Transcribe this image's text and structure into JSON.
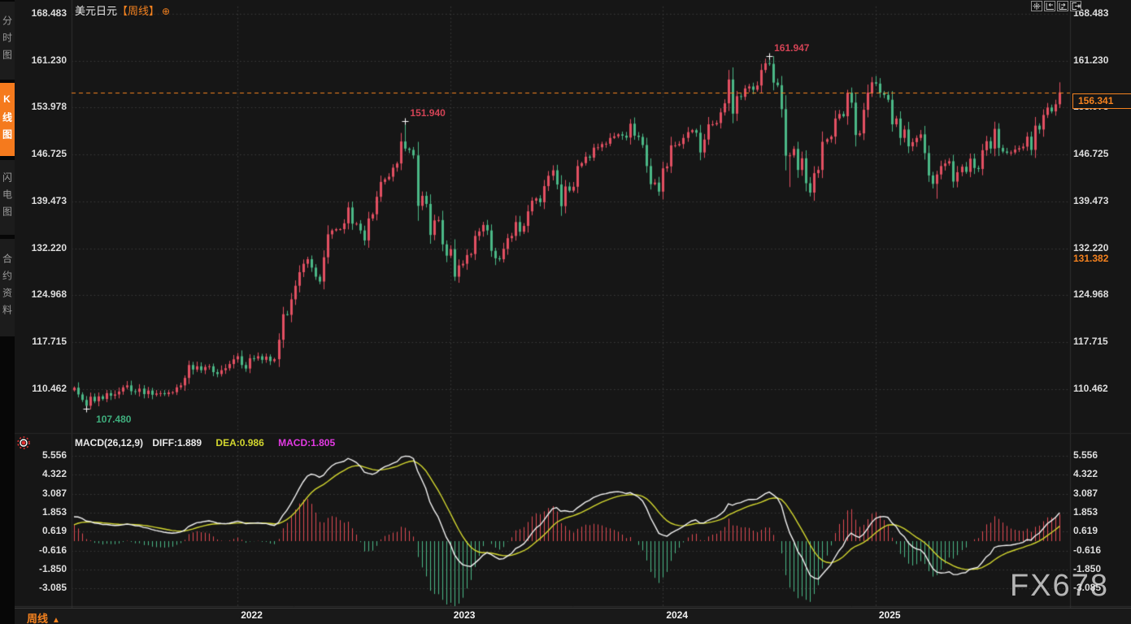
{
  "window": {
    "watermark": "FX678"
  },
  "sidebar": {
    "items": [
      {
        "label": "分时图",
        "active": false
      },
      {
        "label": "K线图",
        "active": true
      },
      {
        "label": "闪电图",
        "active": false
      },
      {
        "label": "合约资料",
        "active": false
      }
    ]
  },
  "header": {
    "symbol": "美元日元",
    "timeframe_bracket": "【周线】",
    "add_icon": "⊕"
  },
  "toolbar": {
    "buttons": [
      {
        "icon": "pan-crosshair-icon"
      },
      {
        "icon": "compress-scale-left-icon"
      },
      {
        "icon": "compress-scale-right-icon"
      },
      {
        "icon": "jump-to-latest-icon"
      }
    ]
  },
  "main_chart": {
    "y_axis_labels": [
      "168.483",
      "161.230",
      "153.978",
      "146.725",
      "139.473",
      "132.220",
      "124.968",
      "117.715",
      "110.462"
    ],
    "current_price_label": "156.341",
    "secondary_price_label": "131.382",
    "annotations": [
      {
        "text": "161.947",
        "price": 161.947,
        "week_index": 170,
        "color": "#d24355",
        "placement": "above"
      },
      {
        "text": "151.940",
        "price": 151.94,
        "week_index": 81,
        "color": "#d24355",
        "placement": "above"
      },
      {
        "text": "107.480",
        "price": 107.48,
        "week_index": 3,
        "color": "#3fae7d",
        "placement": "below"
      }
    ]
  },
  "macd_panel": {
    "header": {
      "formula": "MACD(26,12,9)",
      "diff_label": "DIFF:1.889",
      "dea_label": "DEA:0.986",
      "macd_label": "MACD:1.805"
    },
    "y_axis_labels": [
      "5.556",
      "4.322",
      "3.087",
      "1.853",
      "0.619",
      "-0.616",
      "-1.850",
      "-3.085"
    ]
  },
  "x_axis": {
    "year_labels": [
      {
        "label": "2022",
        "week_index": 40
      },
      {
        "label": "2023",
        "week_index": 92
      },
      {
        "label": "2024",
        "week_index": 144
      },
      {
        "label": "2025",
        "week_index": 196
      }
    ],
    "period_label": "周线",
    "period_arrow": "▲"
  },
  "colors": {
    "up_candle": "#e35062",
    "down_candle": "#4bb887",
    "accent_orange": "#f5821f",
    "diff_line": "#f2f2f2",
    "dea_line": "#d3d72f",
    "macd_value_text": "#e33ae3",
    "grid": "#3b3b3b",
    "annotation_red": "#d24355",
    "annotation_green": "#3fae7d"
  },
  "chart_data": {
    "type": "candlestick",
    "symbol": "美元日元 (USD/JPY)",
    "interval": "周线 weekly",
    "title": "美元日元【周线】",
    "price_axis_ticks": [
      168.483,
      161.23,
      153.978,
      146.725,
      139.473,
      132.22,
      124.968,
      117.715,
      110.462
    ],
    "macd_axis_ticks": [
      5.556,
      4.322,
      3.087,
      1.853,
      0.619,
      -0.616,
      -1.85,
      -3.085
    ],
    "current_price": 156.341,
    "highest_marked": 161.947,
    "lowest_marked": 107.48,
    "intermediate_high_marked": 151.94,
    "macd_readout": {
      "formula": [
        26,
        12,
        9
      ],
      "diff": 1.889,
      "dea": 0.986,
      "macd": 1.805
    },
    "first_open": 110.3,
    "weekly_closes": [
      110.7,
      109.65,
      108.8,
      107.9,
      109.3,
      108.6,
      109.35,
      108.95,
      109.85,
      109.45,
      109.65,
      110.1,
      110.75,
      111.05,
      110.15,
      110.05,
      110.55,
      109.7,
      110.25,
      109.6,
      109.8,
      109.85,
      109.7,
      109.95,
      110.0,
      110.75,
      111.05,
      112.2,
      114.2,
      113.5,
      114.0,
      113.4,
      113.9,
      114.0,
      113.1,
      112.8,
      113.4,
      113.7,
      114.35,
      115.08,
      115.55,
      114.2,
      113.65,
      115.25,
      115.2,
      115.55,
      115.0,
      115.5,
      114.8,
      115.1,
      118.1,
      122.05,
      121.95,
      124.35,
      126.45,
      128.55,
      129.85,
      130.55,
      129.25,
      127.85,
      127.1,
      130.85,
      134.4,
      135.0,
      135.2,
      135.2,
      136.1,
      138.55,
      136.05,
      136.05,
      135.0,
      133.45,
      136.85,
      137.5,
      140.2,
      142.5,
      142.9,
      143.3,
      144.7,
      145.35,
      148.75,
      147.65,
      147.45,
      146.6,
      138.8,
      140.35,
      139.1,
      134.3,
      136.55,
      136.6,
      132.85,
      131.1,
      132.1,
      127.85,
      129.6,
      129.85,
      131.2,
      131.35,
      134.15,
      134.85,
      135.85,
      135.0,
      131.85,
      130.7,
      130.55,
      132.15,
      133.8,
      134.15,
      136.3,
      134.8,
      135.7,
      137.95,
      139.6,
      139.95,
      139.35,
      141.85,
      143.45,
      144.3,
      142.1,
      138.75,
      141.8,
      141.15,
      141.75,
      144.95,
      145.4,
      146.4,
      146.25,
      147.8,
      147.85,
      148.35,
      148.4,
      149.3,
      149.55,
      149.85,
      149.65,
      149.35,
      151.5,
      149.65,
      149.45,
      148.2,
      144.95,
      142.15,
      142.4,
      141.0,
      144.6,
      144.9,
      148.15,
      148.15,
      148.35,
      149.3,
      150.2,
      150.5,
      150.1,
      147.05,
      149.05,
      151.4,
      151.4,
      151.6,
      153.25,
      154.65,
      158.33,
      153.05,
      155.75,
      155.65,
      156.95,
      157.25,
      156.75,
      157.4,
      159.8,
      160.85,
      160.75,
      157.85,
      157.45,
      153.75,
      146.55,
      146.6,
      147.6,
      144.35,
      146.15,
      142.3,
      140.85,
      143.85,
      144.35,
      148.7,
      149.1,
      149.5,
      152.3,
      153.0,
      152.65,
      156.3,
      154.75,
      149.75,
      150.0,
      153.65,
      156.3,
      157.9,
      157.7,
      156.3,
      155.95,
      155.2,
      151.4,
      152.3,
      149.3,
      150.6,
      148.0,
      148.65,
      149.3,
      149.85,
      146.95,
      143.5,
      142.2,
      143.65,
      144.95,
      145.35,
      145.7,
      142.55,
      144.0,
      144.85,
      144.05,
      146.1,
      144.65,
      144.5,
      147.4,
      148.8,
      147.65,
      150.7,
      147.75,
      147.2,
      147.0,
      147.05,
      147.5,
      147.7,
      147.95,
      149.5,
      147.45,
      151.2,
      150.6,
      152.85,
      154.0,
      153.4,
      154.5,
      156.341
    ],
    "extreme_overrides": {
      "3": {
        "low": 107.48
      },
      "81": {
        "high": 151.94
      },
      "93": {
        "low": 127.21
      },
      "103": {
        "low": 129.64
      },
      "119": {
        "low": 137.25
      },
      "161": {
        "high": 160.2
      },
      "170": {
        "high": 161.947
      },
      "175": {
        "low": 141.7
      },
      "181": {
        "low": 139.58
      },
      "189": {
        "high": 156.74
      },
      "196": {
        "high": 158.88
      },
      "211": {
        "low": 139.89
      },
      "241": {
        "high": 157.9
      }
    }
  }
}
